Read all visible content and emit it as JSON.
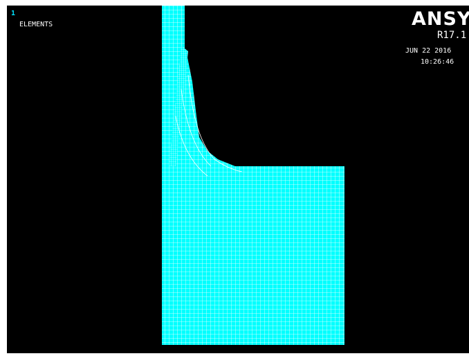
{
  "window": {
    "number": "1",
    "plot_label": "ELEMENTS"
  },
  "branding": {
    "product": "ANSYS",
    "release": "R17.1"
  },
  "timestamp": {
    "date": "JUN 22 2016",
    "time": "10:26:46"
  },
  "colors": {
    "background": "#000000",
    "mesh_fill": "#00ffff",
    "mesh_lines": "#ffffff",
    "window_number": "#00e5ff"
  }
}
